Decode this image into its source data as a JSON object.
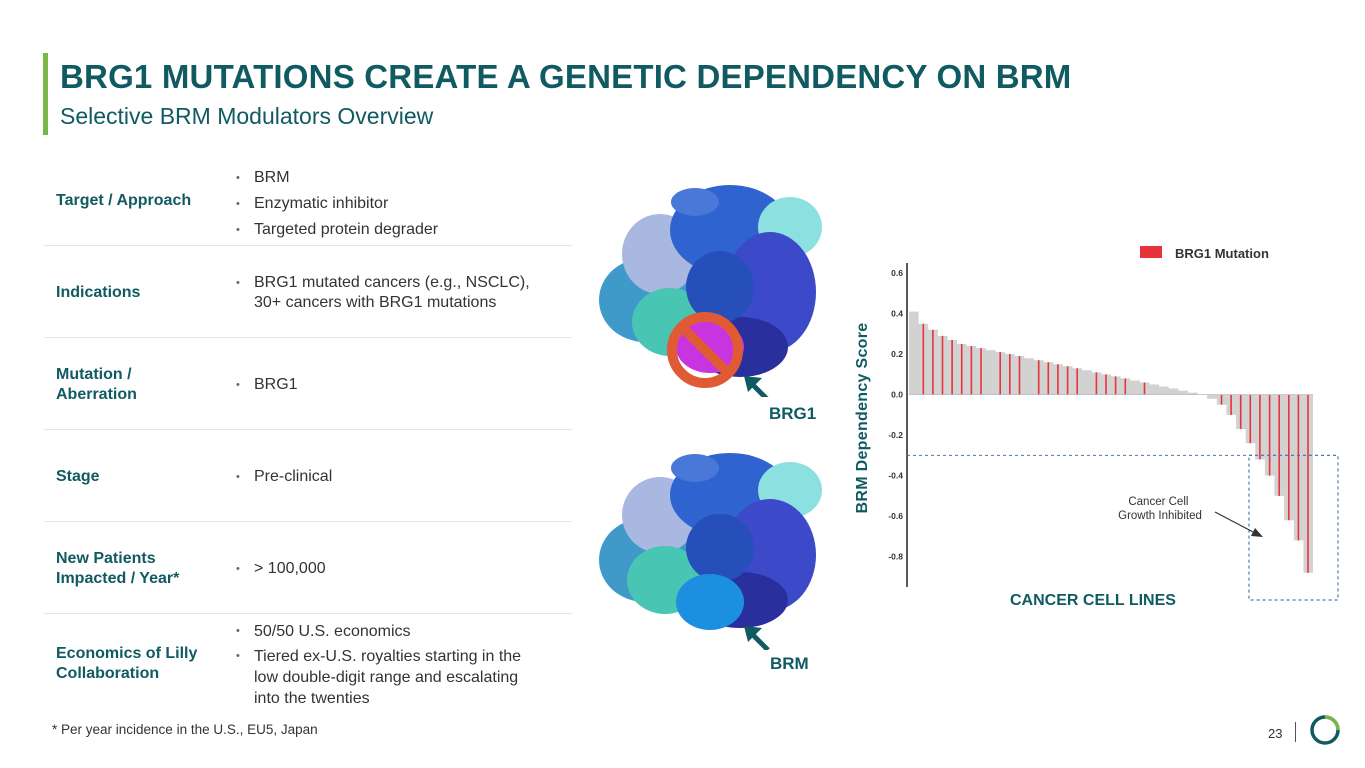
{
  "header": {
    "title": "BRG1 MUTATIONS CREATE A GENETIC DEPENDENCY ON BRM",
    "subtitle": "Selective BRM Modulators Overview"
  },
  "table": {
    "rows": [
      {
        "label": "Target / Approach",
        "items": [
          "BRM",
          "Enzymatic inhibitor",
          "Targeted protein degrader"
        ]
      },
      {
        "label": "Indications",
        "items": [
          "BRG1 mutated cancers (e.g., NSCLC), 30+ cancers with BRG1 mutations"
        ]
      },
      {
        "label": "Mutation / Aberration",
        "items": [
          "BRG1"
        ]
      },
      {
        "label": "Stage",
        "items": [
          "Pre-clinical"
        ]
      },
      {
        "label": "New Patients Impacted / Year*",
        "items": [
          "> 100,000"
        ]
      },
      {
        "label": "Economics of Lilly Collaboration",
        "items": [
          "50/50 U.S. economics",
          "Tiered ex-U.S. royalties starting in the low double-digit range and escalating into the twenties"
        ]
      }
    ]
  },
  "footnote": "* Per year incidence in the U.S., EU5, Japan",
  "page_number": "23",
  "proteins": {
    "top_label": "BRG1",
    "bottom_label": "BRM",
    "inhibited_icon": "prohibition-icon"
  },
  "chart_data": {
    "type": "bar",
    "ylabel": "BRM Dependency Score",
    "xlabel": "CANCER CELL LINES",
    "legend": {
      "label": "BRG1 Mutation",
      "color": "#e8323c",
      "position": "top-right"
    },
    "yticks": [
      "0.6",
      "0.4",
      "0.2",
      "0.0",
      "-0.2",
      "-0.4",
      "-0.6",
      "-0.8"
    ],
    "ylim": [
      -0.95,
      0.65
    ],
    "threshold": -0.3,
    "annotation": "Cancer Cell Growth Inhibited",
    "colors": {
      "bar": "#d2d2d2",
      "mutation": "#e8323c",
      "box": "#4a79a8"
    },
    "values": [
      0.41,
      0.35,
      0.32,
      0.29,
      0.27,
      0.25,
      0.24,
      0.23,
      0.22,
      0.21,
      0.2,
      0.19,
      0.18,
      0.17,
      0.16,
      0.15,
      0.14,
      0.13,
      0.12,
      0.11,
      0.1,
      0.09,
      0.08,
      0.07,
      0.06,
      0.05,
      0.04,
      0.03,
      0.02,
      0.01,
      0.0,
      -0.02,
      -0.05,
      -0.1,
      -0.17,
      -0.24,
      -0.32,
      -0.4,
      -0.5,
      -0.62,
      -0.72,
      -0.88
    ],
    "mutated": [
      false,
      true,
      true,
      true,
      true,
      true,
      true,
      true,
      false,
      true,
      true,
      true,
      false,
      true,
      true,
      true,
      true,
      true,
      false,
      true,
      true,
      true,
      true,
      false,
      true,
      false,
      false,
      false,
      false,
      false,
      false,
      false,
      true,
      true,
      true,
      true,
      true,
      true,
      true,
      true,
      true,
      true
    ]
  }
}
